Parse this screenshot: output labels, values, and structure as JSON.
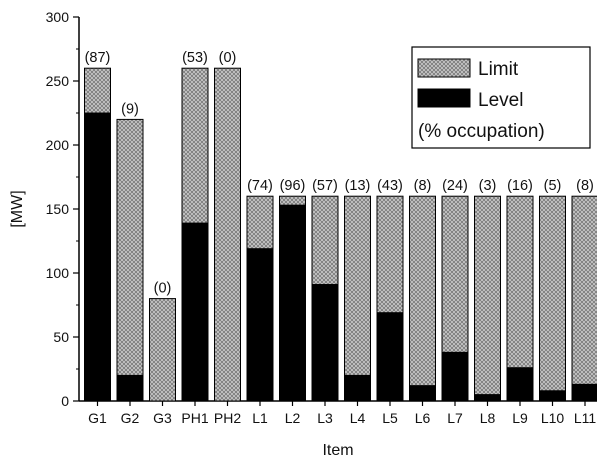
{
  "chart_data": {
    "type": "bar",
    "stacked": "overlay",
    "title": "",
    "xlabel": "Item",
    "ylabel": "[MW]",
    "ylim": [
      0,
      300
    ],
    "yticks": [
      0,
      50,
      100,
      150,
      200,
      250,
      300
    ],
    "categories": [
      "G1",
      "G2",
      "G3",
      "PH1",
      "PH2",
      "L1",
      "L2",
      "L3",
      "L4",
      "L5",
      "L6",
      "L7",
      "L8",
      "L9",
      "L10",
      "L11"
    ],
    "series": [
      {
        "name": "Limit",
        "values": [
          260,
          220,
          80,
          260,
          260,
          160,
          160,
          160,
          160,
          160,
          160,
          160,
          160,
          160,
          160,
          160
        ],
        "color": "#bdbdbd",
        "pattern": "crosshatch"
      },
      {
        "name": "Level",
        "values": [
          225,
          20,
          0,
          139,
          0,
          119,
          153,
          91,
          20,
          69,
          12,
          38,
          5,
          26,
          8,
          13
        ],
        "color": "#000000"
      }
    ],
    "data_labels": [
      "(87)",
      "(9)",
      "(0)",
      "(53)",
      "(0)",
      "(74)",
      "(96)",
      "(57)",
      "(13)",
      "(43)",
      "(8)",
      "(24)",
      "(3)",
      "(16)",
      "(5)",
      "(8)"
    ],
    "legend": {
      "placement": "top-right",
      "entries": [
        "Limit",
        "Level"
      ],
      "note": "(% occupation)"
    },
    "grid": false
  }
}
